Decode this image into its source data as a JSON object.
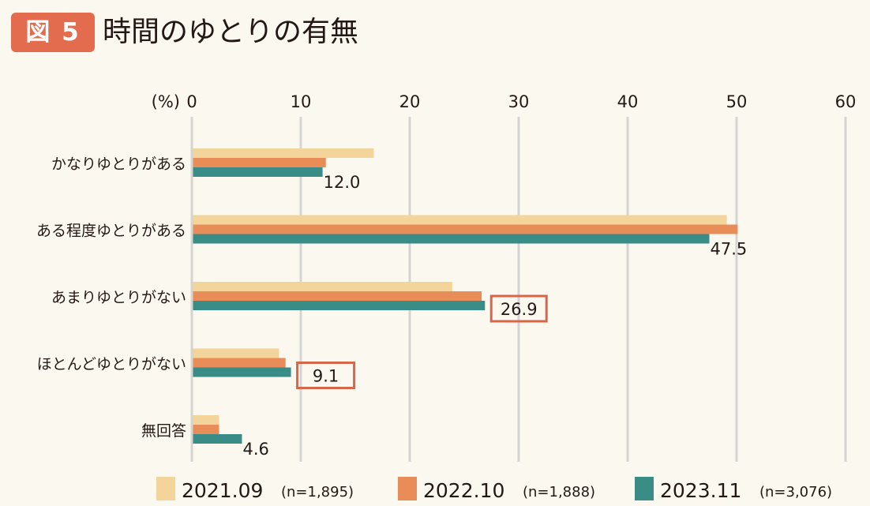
{
  "figure": {
    "badge": "図 5",
    "title": "時間のゆとりの有無"
  },
  "chart_data": {
    "type": "bar",
    "orientation": "horizontal",
    "title": "時間のゆとりの有無",
    "unit_label": "(%)",
    "xlim": [
      0,
      60
    ],
    "xticks": [
      0,
      10,
      20,
      30,
      40,
      50,
      60
    ],
    "grid": true,
    "legend_position": "bottom",
    "categories": [
      "かなりゆとりがある",
      "ある程度ゆとりがある",
      "あまりゆとりがない",
      "ほとんどゆとりがない",
      "無回答"
    ],
    "series": [
      {
        "name": "2021.09",
        "n_label": "(n=1,895)",
        "color": "#f3d49a",
        "values": [
          16.7,
          49.1,
          23.9,
          8.0,
          2.5
        ]
      },
      {
        "name": "2022.10",
        "n_label": "(n=1,888)",
        "color": "#e88d58",
        "values": [
          12.3,
          50.1,
          26.6,
          8.6,
          2.5
        ]
      },
      {
        "name": "2023.11",
        "n_label": "(n=3,076)",
        "color": "#3a8c86",
        "values": [
          12.0,
          47.5,
          26.9,
          9.1,
          4.6
        ]
      }
    ],
    "data_labels": [
      {
        "category_index": 0,
        "series_index": 2,
        "text": "12.0",
        "boxed": false
      },
      {
        "category_index": 1,
        "series_index": 2,
        "text": "47.5",
        "boxed": false
      },
      {
        "category_index": 2,
        "series_index": 2,
        "text": "26.9",
        "boxed": true
      },
      {
        "category_index": 3,
        "series_index": 2,
        "text": "9.1",
        "boxed": true
      },
      {
        "category_index": 4,
        "series_index": 2,
        "text": "4.6",
        "boxed": false
      }
    ],
    "highlight_color": "#d9654a",
    "grid_color": "#d6d4d0"
  }
}
